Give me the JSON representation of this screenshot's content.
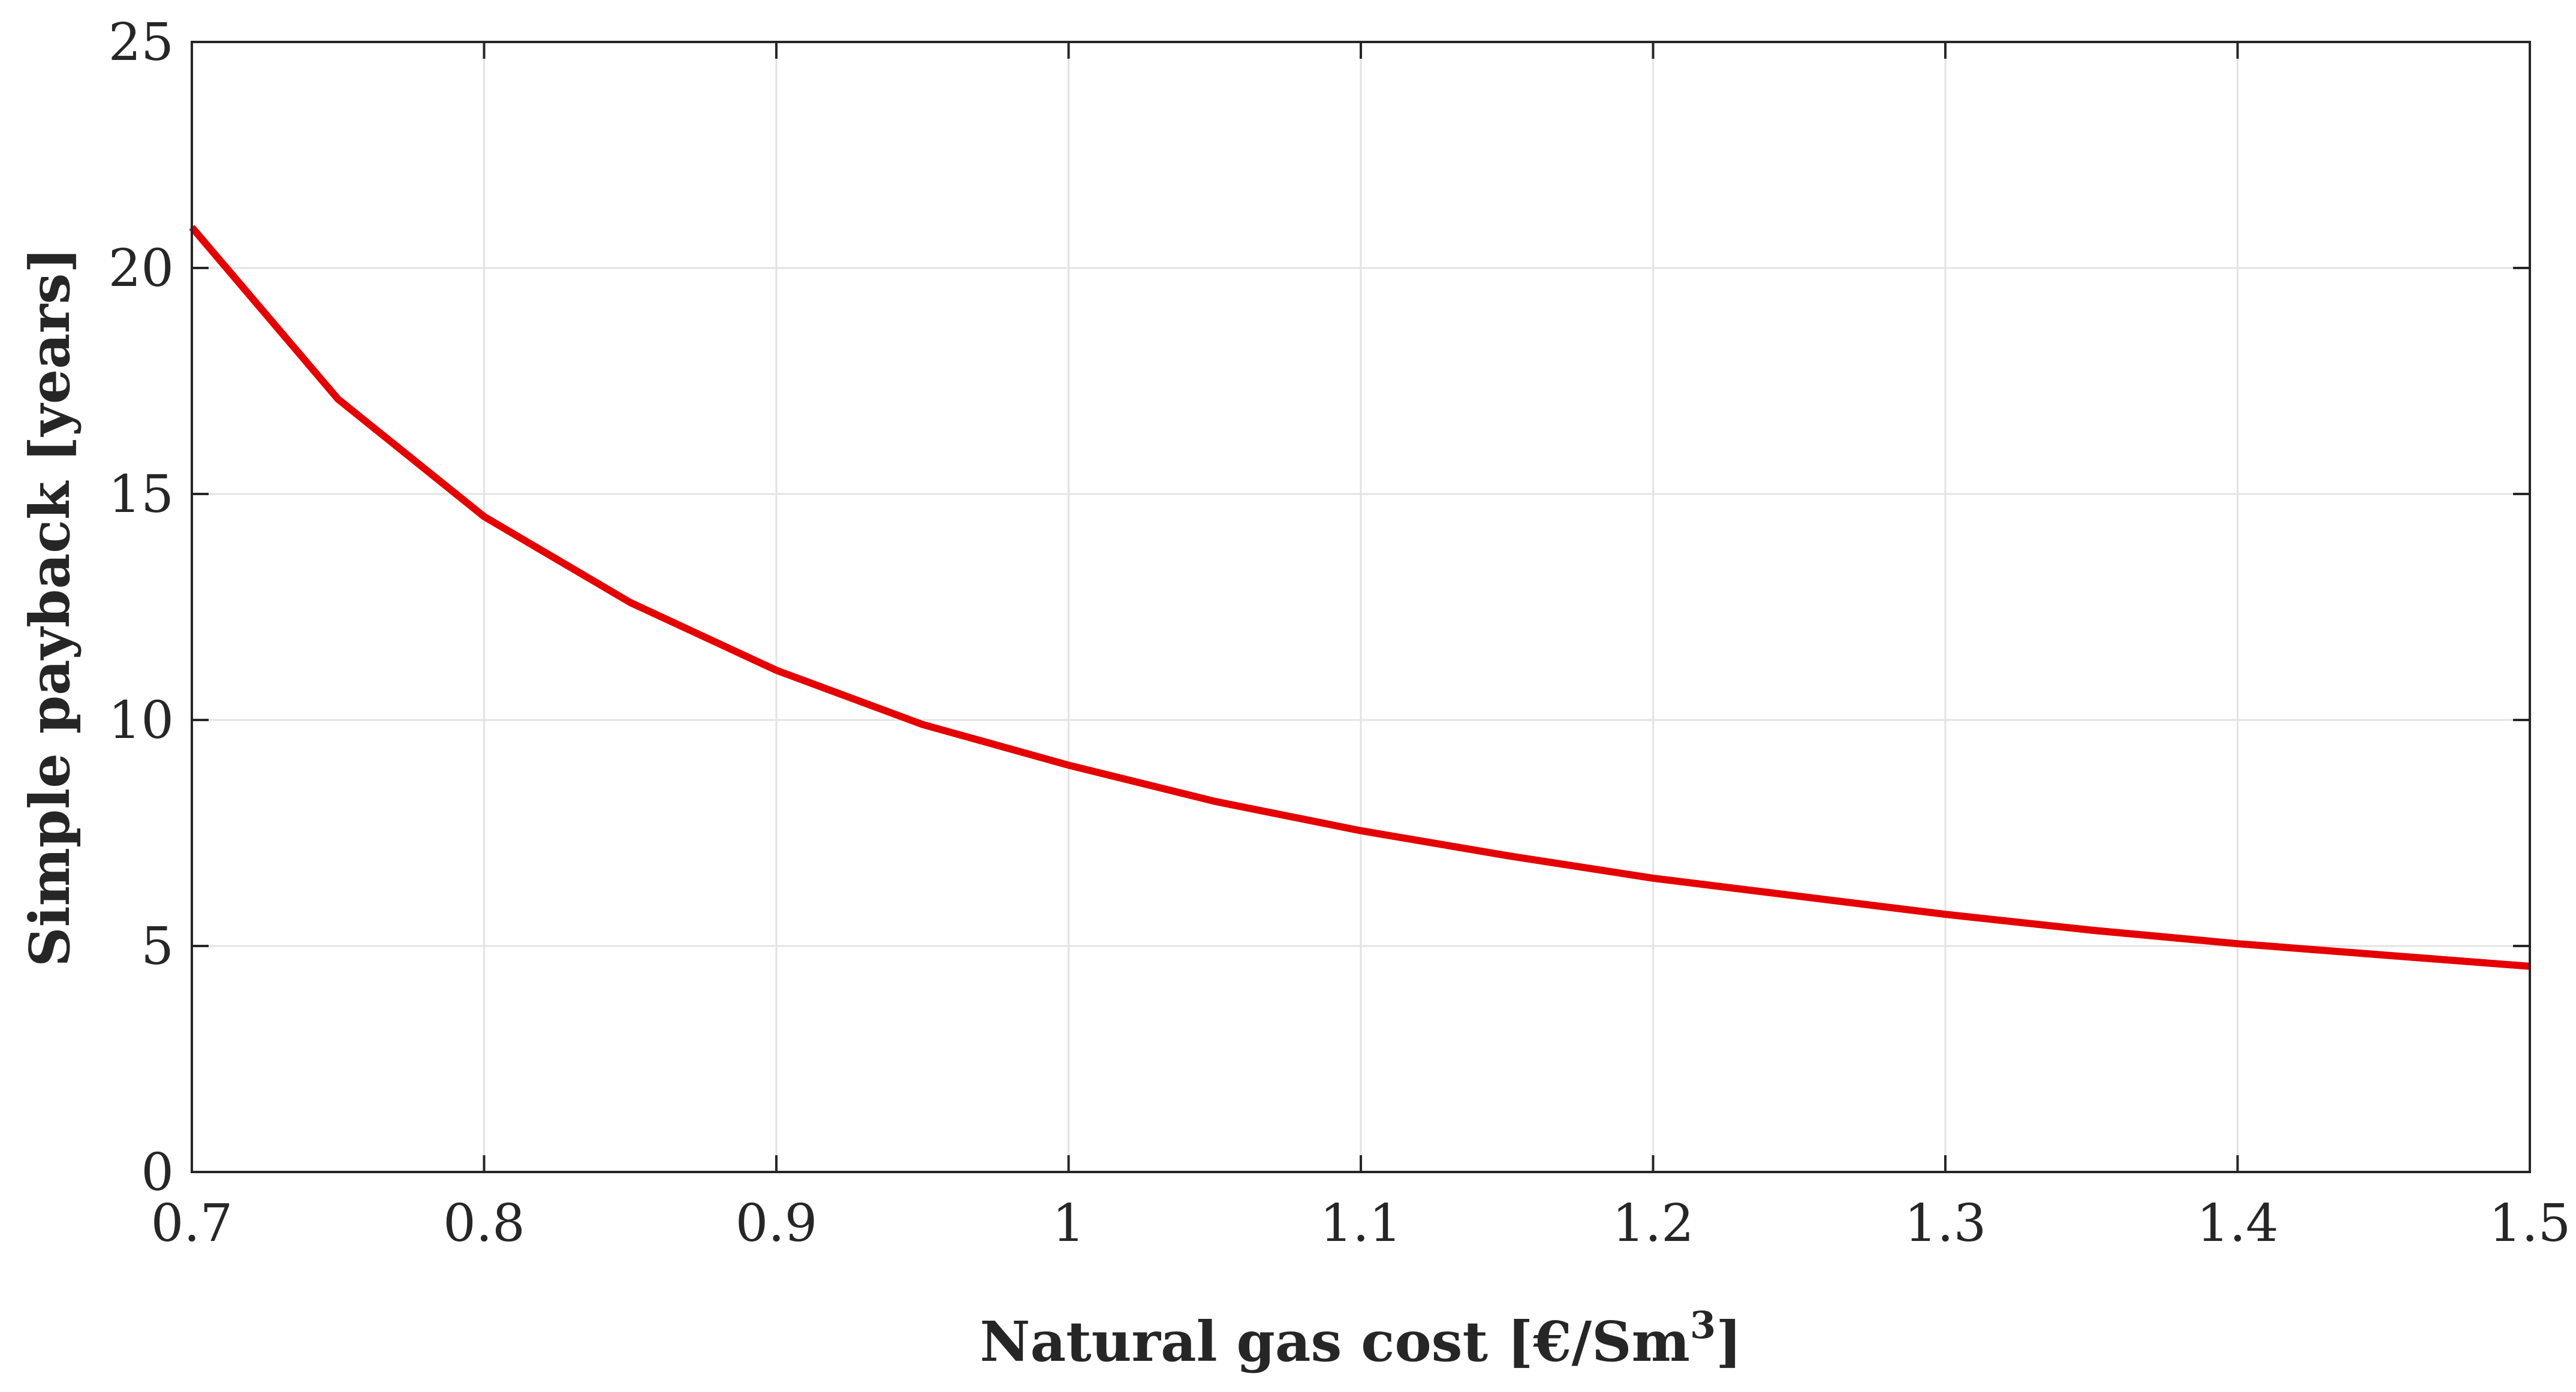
{
  "chart_data": {
    "type": "line",
    "title": "",
    "xlabel": "Natural gas cost [€/Sm",
    "xlabel_superscript": "3",
    "xlabel_suffix": "]",
    "ylabel": "Simple payback [years]",
    "xlim": [
      0.7,
      1.5
    ],
    "ylim": [
      0,
      25
    ],
    "grid": true,
    "x_ticks": [
      0.7,
      0.8,
      0.9,
      1.0,
      1.1,
      1.2,
      1.3,
      1.4,
      1.5
    ],
    "x_tick_labels": [
      "0.7",
      "0.8",
      "0.9",
      "1",
      "1.1",
      "1.2",
      "1.3",
      "1.4",
      "1.5"
    ],
    "y_ticks": [
      0,
      5,
      10,
      15,
      20,
      25
    ],
    "y_tick_labels": [
      "0",
      "5",
      "10",
      "15",
      "20",
      "25"
    ],
    "series": [
      {
        "name": "Simple payback",
        "color": "#e50000",
        "x": [
          0.7,
          0.75,
          0.8,
          0.85,
          0.9,
          0.95,
          1.0,
          1.05,
          1.1,
          1.15,
          1.2,
          1.25,
          1.3,
          1.35,
          1.4,
          1.45,
          1.5
        ],
        "values": [
          20.9,
          17.1,
          14.5,
          12.6,
          11.1,
          9.9,
          9.0,
          8.2,
          7.55,
          7.0,
          6.5,
          6.1,
          5.7,
          5.35,
          5.05,
          4.8,
          4.55
        ]
      }
    ]
  }
}
